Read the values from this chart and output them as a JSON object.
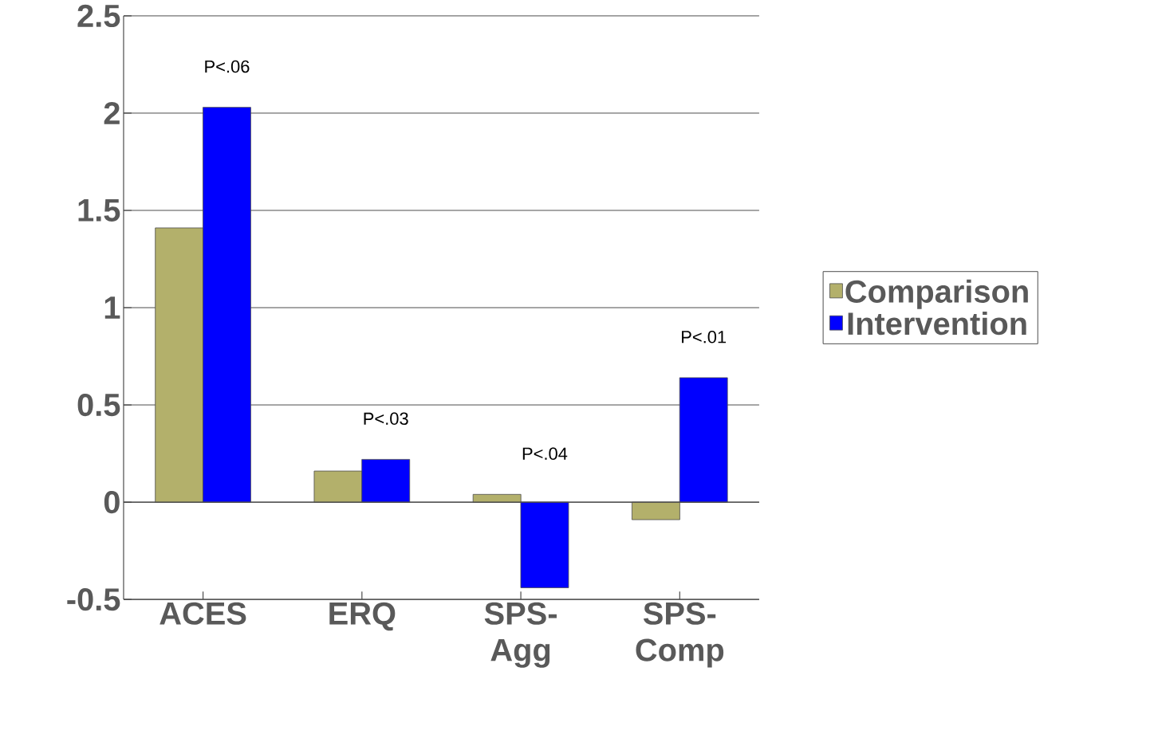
{
  "chart_data": {
    "type": "bar",
    "categories": [
      "ACES",
      "ERQ",
      "SPS-Agg",
      "SPS-Comp"
    ],
    "series": [
      {
        "name": "Comparison",
        "color": "#b3b06b",
        "values": [
          1.41,
          0.16,
          0.04,
          -0.09
        ]
      },
      {
        "name": "Intervention",
        "color": "#0000ff",
        "values": [
          2.03,
          0.22,
          -0.44,
          0.64
        ]
      }
    ],
    "ylim": [
      -0.5,
      2.5
    ],
    "yticks": [
      -0.5,
      0,
      0.5,
      1,
      1.5,
      2,
      2.5
    ],
    "grid": "y",
    "legend": "right",
    "annotations": [
      "P<.06",
      "P<.03",
      "P<.04",
      "P<.01"
    ]
  }
}
